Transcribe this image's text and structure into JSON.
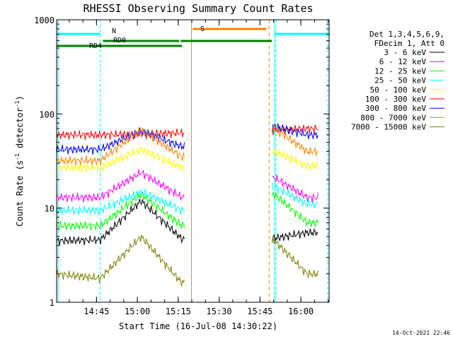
{
  "chart_data": {
    "type": "line",
    "title": "RHESSI Observing Summary Count Rates",
    "xlabel": "Start Time (16-Jul-08 14:30:22)",
    "ylabel": "Count Rate (s^-1 detector^-1)",
    "ylabel_parts": {
      "main": "Count Rate (s",
      "exp": "-1",
      "after": " detector",
      "exp2": "-1",
      "close": ")"
    },
    "y_scale": "log",
    "ylim": [
      1,
      1000
    ],
    "xlim_minutes": [
      0,
      100
    ],
    "x_tick_labels": [
      "14:45",
      "15:00",
      "15:15",
      "15:30",
      "15:45",
      "16:00"
    ],
    "x_tick_minutes": [
      14.633,
      29.633,
      44.633,
      59.633,
      74.633,
      89.633
    ],
    "y_tick_labels": [
      "1",
      "10",
      "100",
      "1000"
    ],
    "y_tick_values": [
      1,
      10,
      100,
      1000
    ],
    "legend_header": [
      "Det 1,3,4,5,6,9,",
      "FDecim 1, Att 0"
    ],
    "legend_position": "right",
    "timestamp": "14-Oct-2021 22:46",
    "series": [
      {
        "name": "3 - 6 keV",
        "color": "#000000",
        "values": [
          4.5,
          4.6,
          12,
          4.7,
          4.8,
          5.5
        ]
      },
      {
        "name": "6 - 12 keV",
        "color": "#ff00ff",
        "values": [
          13,
          13,
          24,
          13,
          21,
          13
        ]
      },
      {
        "name": "12 - 25 keV",
        "color": "#00ff00",
        "values": [
          6.5,
          6.5,
          14,
          6.5,
          14,
          7
        ]
      },
      {
        "name": "25 - 50 keV",
        "color": "#00ffff",
        "values": [
          9.5,
          9.5,
          15,
          9.5,
          17,
          11
        ]
      },
      {
        "name": "50 - 100 keV",
        "color": "#ffff00",
        "values": [
          27,
          27,
          42,
          27,
          40,
          28
        ]
      },
      {
        "name": "100 - 300 keV",
        "color": "#ff0000",
        "values": [
          60,
          60,
          61,
          63,
          67,
          70
        ]
      },
      {
        "name": "300 - 800 keV",
        "color": "#0000ff",
        "values": [
          42,
          42,
          66,
          45,
          74,
          60
        ]
      },
      {
        "name": "800 - 7000 keV",
        "color": "#ff8000",
        "values": [
          32,
          32,
          68,
          35,
          70,
          40
        ]
      },
      {
        "name": "7000 - 15000 keV",
        "color": "#808000",
        "values": [
          2.0,
          1.8,
          5.0,
          1.6,
          4.5,
          2.0
        ]
      }
    ],
    "series_time_minutes": [
      0,
      16,
      31,
      46,
      80,
      92
    ],
    "flags": [
      {
        "label": "N",
        "color": "#00ffff",
        "segments": [
          [
            0,
            16
          ],
          [
            80,
            100
          ]
        ]
      },
      {
        "label": "RD0",
        "color": "#008000",
        "segments": [
          [
            17,
            45
          ],
          [
            45.5,
            79
          ]
        ]
      },
      {
        "label": "RD4",
        "color": "#008000",
        "segments": [
          [
            0,
            46
          ]
        ]
      },
      {
        "label": "S",
        "color": "#ff8000",
        "segments": [
          [
            50,
            77
          ]
        ]
      }
    ],
    "night_boundaries_minutes": [
      16,
      80.5,
      99.5
    ],
    "saa_boundaries_minutes": [
      49.5,
      78
    ]
  }
}
